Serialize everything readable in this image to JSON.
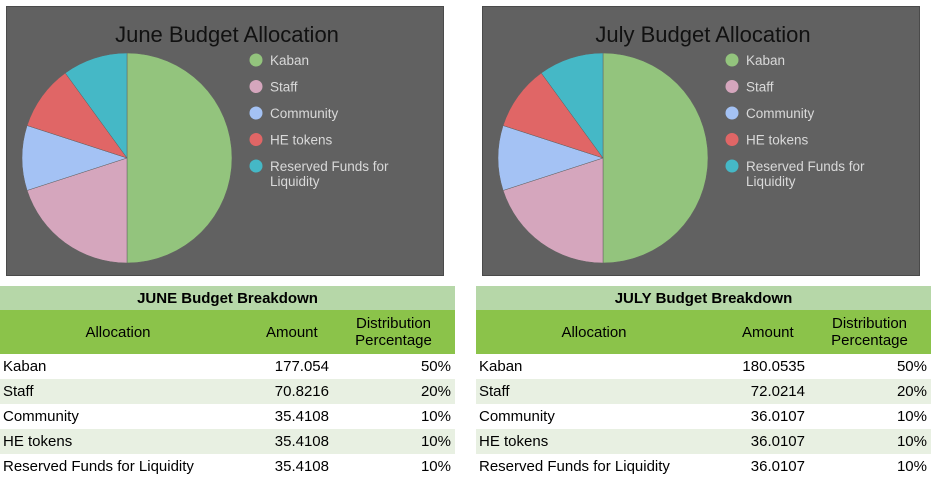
{
  "chart_data": [
    {
      "type": "pie",
      "title": "June Budget Allocation",
      "categories": [
        "Kaban",
        "Staff",
        "Community",
        "HE tokens",
        "Reserved Funds for Liquidity"
      ],
      "legend_lines": [
        [
          "Kaban"
        ],
        [
          "Staff"
        ],
        [
          "Community"
        ],
        [
          "HE tokens"
        ],
        [
          "Reserved Funds for",
          "Liquidity"
        ]
      ],
      "values": [
        50,
        20,
        10,
        10,
        10
      ],
      "colors": [
        "#93c47d",
        "#d5a6bd",
        "#a4c2f4",
        "#e06666",
        "#45b8c6"
      ],
      "legend_position": "right"
    },
    {
      "type": "pie",
      "title": "July Budget Allocation",
      "categories": [
        "Kaban",
        "Staff",
        "Community",
        "HE tokens",
        "Reserved Funds for Liquidity"
      ],
      "legend_lines": [
        [
          "Kaban"
        ],
        [
          "Staff"
        ],
        [
          "Community"
        ],
        [
          "HE tokens"
        ],
        [
          "Reserved Funds for",
          "Liquidity"
        ]
      ],
      "values": [
        50,
        20,
        10,
        10,
        10
      ],
      "colors": [
        "#93c47d",
        "#d5a6bd",
        "#a4c2f4",
        "#e06666",
        "#45b8c6"
      ],
      "legend_position": "right"
    }
  ],
  "tables": {
    "june": {
      "title": "JUNE Budget Breakdown",
      "headers": {
        "allocation": "Allocation",
        "amount": "Amount",
        "pct_line1": "Distribution",
        "pct_line2": "Percentage"
      },
      "rows": [
        {
          "name": "Kaban",
          "amount": "177.054",
          "pct": "50%"
        },
        {
          "name": "Staff",
          "amount": "70.8216",
          "pct": "20%"
        },
        {
          "name": "Community",
          "amount": "35.4108",
          "pct": "10%"
        },
        {
          "name": "HE tokens",
          "amount": "35.4108",
          "pct": "10%"
        },
        {
          "name": "Reserved Funds for Liquidity",
          "amount": "35.4108",
          "pct": "10%"
        }
      ]
    },
    "july": {
      "title": "JULY Budget Breakdown",
      "headers": {
        "allocation": "Allocation",
        "amount": "Amount",
        "pct_line1": "Distribution",
        "pct_line2": "Percentage"
      },
      "rows": [
        {
          "name": "Kaban",
          "amount": "180.0535",
          "pct": "50%"
        },
        {
          "name": "Staff",
          "amount": "72.0214",
          "pct": "20%"
        },
        {
          "name": "Community",
          "amount": "36.0107",
          "pct": "10%"
        },
        {
          "name": "HE tokens",
          "amount": "36.0107",
          "pct": "10%"
        },
        {
          "name": "Reserved Funds for Liquidity",
          "amount": "36.0107",
          "pct": "10%"
        }
      ]
    }
  }
}
